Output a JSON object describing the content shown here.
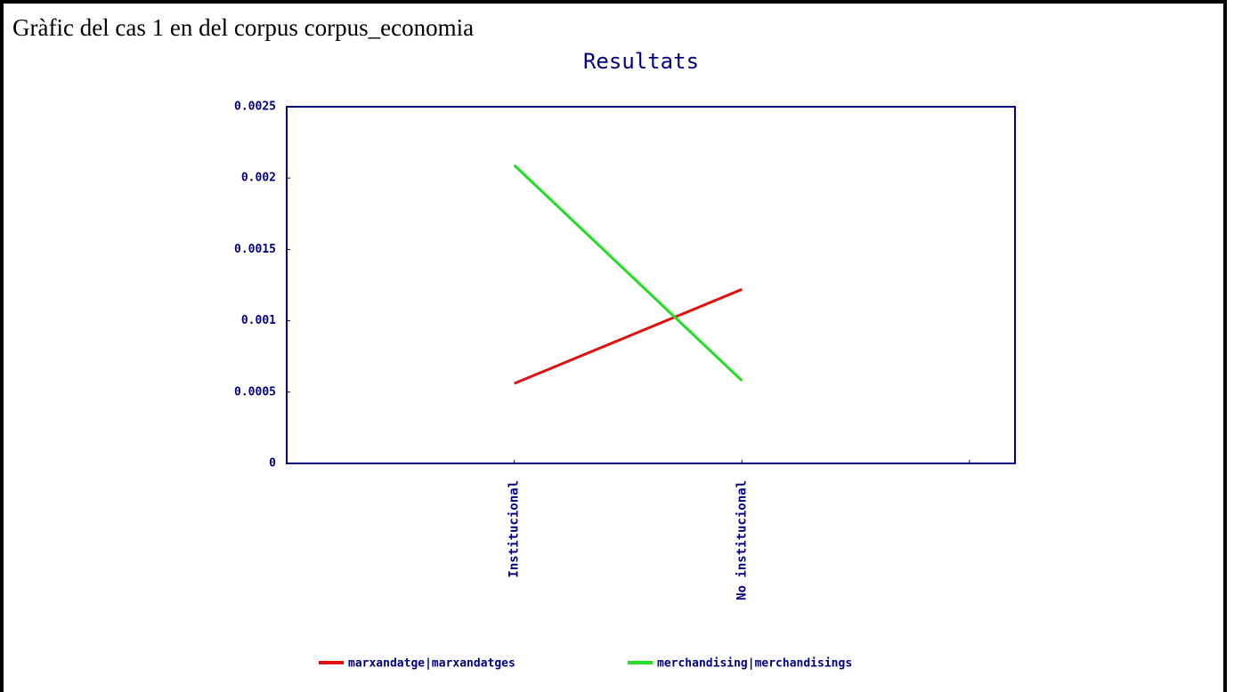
{
  "header": {
    "title": "Gràfic del cas 1 en del corpus corpus_economia"
  },
  "chart_data": {
    "type": "line",
    "title": "Resultats",
    "categories": [
      "Institucional",
      "No institucional",
      null
    ],
    "series": [
      {
        "name": "marxandatge|marxandatges",
        "color": "#e01010",
        "values": [
          0.00056,
          0.00122,
          null
        ]
      },
      {
        "name": "merchandising|merchandisings",
        "color": "#22dd22",
        "values": [
          0.00209,
          0.00058,
          null
        ]
      }
    ],
    "ylim": [
      0,
      0.0025
    ],
    "yticks": [
      0,
      0.0005,
      0.001,
      0.0015,
      0.002,
      0.0025
    ],
    "grid": false,
    "legend": "bottom"
  }
}
